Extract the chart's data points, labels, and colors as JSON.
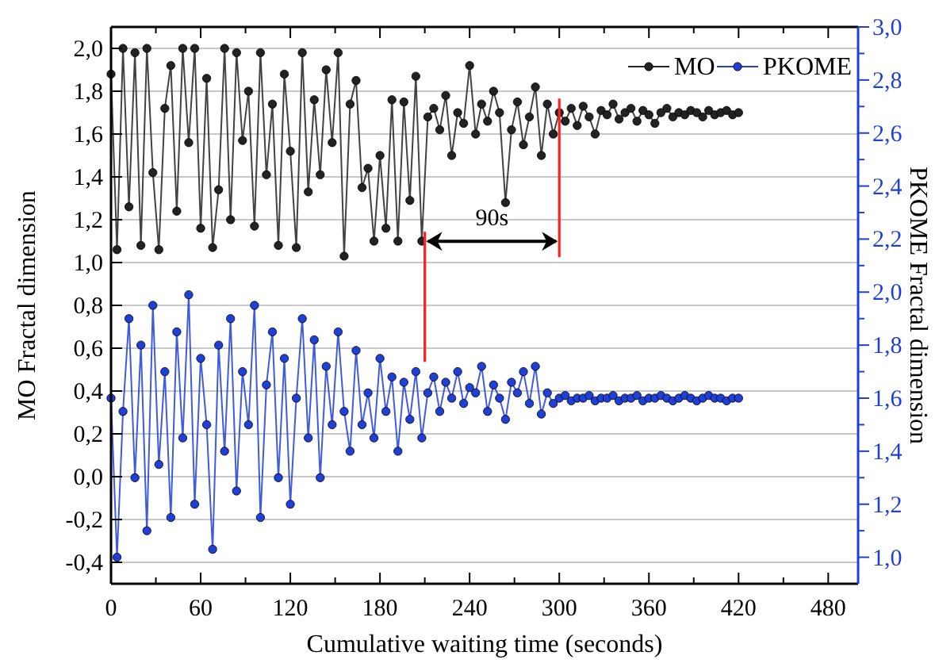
{
  "chart_data": {
    "type": "line",
    "xlabel": "Cumulative waiting time (seconds)",
    "ylabel": "MO Fractal dimension",
    "y2label": "PKOME Fractal dimension",
    "x": [
      0,
      4,
      8,
      12,
      16,
      20,
      24,
      28,
      32,
      36,
      40,
      44,
      48,
      52,
      56,
      60,
      64,
      68,
      72,
      76,
      80,
      84,
      88,
      92,
      96,
      100,
      104,
      108,
      112,
      116,
      120,
      124,
      128,
      132,
      136,
      140,
      144,
      148,
      152,
      156,
      160,
      164,
      168,
      172,
      176,
      180,
      184,
      188,
      192,
      196,
      200,
      204,
      208,
      212,
      216,
      220,
      224,
      228,
      232,
      236,
      240,
      244,
      248,
      252,
      256,
      260,
      264,
      268,
      272,
      276,
      280,
      284,
      288,
      292,
      296,
      300,
      304,
      308,
      312,
      316,
      320,
      324,
      328,
      332,
      336,
      340,
      344,
      348,
      352,
      356,
      360,
      364,
      368,
      372,
      376,
      380,
      384,
      388,
      392,
      396,
      400,
      404,
      408,
      412,
      416,
      420
    ],
    "series": [
      {
        "name": "MO",
        "color": "#222222",
        "values": [
          1.88,
          1.06,
          2.0,
          1.26,
          1.98,
          1.08,
          2.0,
          1.42,
          1.06,
          1.72,
          1.92,
          1.24,
          2.0,
          1.56,
          2.0,
          1.16,
          1.86,
          1.07,
          1.34,
          2.0,
          1.2,
          1.98,
          1.57,
          1.8,
          1.17,
          1.98,
          1.41,
          1.74,
          1.08,
          1.88,
          1.52,
          1.07,
          1.98,
          1.33,
          1.76,
          1.41,
          1.9,
          1.56,
          1.98,
          1.03,
          1.74,
          1.85,
          1.35,
          1.44,
          1.1,
          1.5,
          1.16,
          1.76,
          1.1,
          1.75,
          1.29,
          1.87,
          1.1,
          1.68,
          1.72,
          1.62,
          1.78,
          1.5,
          1.7,
          1.65,
          1.92,
          1.6,
          1.74,
          1.66,
          1.8,
          1.7,
          1.28,
          1.62,
          1.75,
          1.55,
          1.68,
          1.82,
          1.5,
          1.74,
          1.6,
          1.7,
          1.66,
          1.72,
          1.64,
          1.73,
          1.68,
          1.6,
          1.71,
          1.69,
          1.74,
          1.67,
          1.7,
          1.72,
          1.66,
          1.71,
          1.69,
          1.65,
          1.7,
          1.72,
          1.68,
          1.7,
          1.69,
          1.71,
          1.7,
          1.68,
          1.71,
          1.69,
          1.7,
          1.71,
          1.69,
          1.7
        ]
      },
      {
        "name": "PKOME",
        "color": "#1f3fd6",
        "axis": "y2",
        "values": [
          1.6,
          1.0,
          1.55,
          1.9,
          1.3,
          1.8,
          1.1,
          1.95,
          1.35,
          1.7,
          1.15,
          1.85,
          1.45,
          1.99,
          1.2,
          1.75,
          1.5,
          1.03,
          1.8,
          1.4,
          1.9,
          1.25,
          1.7,
          1.5,
          1.95,
          1.15,
          1.65,
          1.85,
          1.3,
          1.75,
          1.2,
          1.6,
          1.9,
          1.45,
          1.82,
          1.3,
          1.72,
          1.5,
          1.85,
          1.55,
          1.4,
          1.78,
          1.5,
          1.62,
          1.45,
          1.75,
          1.55,
          1.68,
          1.4,
          1.66,
          1.52,
          1.7,
          1.45,
          1.62,
          1.68,
          1.55,
          1.66,
          1.6,
          1.7,
          1.58,
          1.64,
          1.62,
          1.72,
          1.55,
          1.65,
          1.6,
          1.52,
          1.66,
          1.62,
          1.7,
          1.58,
          1.72,
          1.54,
          1.62,
          1.58,
          1.6,
          1.61,
          1.59,
          1.6,
          1.6,
          1.61,
          1.59,
          1.6,
          1.6,
          1.61,
          1.59,
          1.6,
          1.6,
          1.61,
          1.59,
          1.6,
          1.6,
          1.61,
          1.6,
          1.59,
          1.6,
          1.61,
          1.6,
          1.59,
          1.6,
          1.61,
          1.6,
          1.6,
          1.59,
          1.6,
          1.6
        ]
      }
    ],
    "xlim": [
      0,
      500
    ],
    "xticks": [
      0,
      {
        "value": 30,
        "label": null
      },
      60,
      {
        "value": 90,
        "label": null
      },
      120,
      {
        "value": 150,
        "label": null
      },
      180,
      {
        "value": 210,
        "label": null
      },
      240,
      {
        "value": 270,
        "label": null
      },
      300,
      {
        "value": 330,
        "label": null
      },
      360,
      {
        "value": 390,
        "label": null
      },
      420,
      {
        "value": 450,
        "label": null
      },
      480
    ],
    "ylim": [
      -0.5,
      2.1
    ],
    "yticks": [
      {
        "value": -0.4,
        "label": "-0,4"
      },
      {
        "value": -0.2,
        "label": "-0,2"
      },
      {
        "value": 0,
        "label": "0,0"
      },
      {
        "value": 0.2,
        "label": "0,2"
      },
      {
        "value": 0.4,
        "label": "0,4"
      },
      {
        "value": 0.6,
        "label": "0,6"
      },
      {
        "value": 0.8,
        "label": "0,8"
      },
      {
        "value": 1.0,
        "label": "1,0"
      },
      {
        "value": 1.2,
        "label": "1,2"
      },
      {
        "value": 1.4,
        "label": "1,4"
      },
      {
        "value": 1.6,
        "label": "1,6"
      },
      {
        "value": 1.8,
        "label": "1,8"
      },
      {
        "value": 2.0,
        "label": "2,0"
      }
    ],
    "y2lim": [
      0.9,
      3.0
    ],
    "y2ticks": [
      {
        "value": 1.0,
        "label": "1,0"
      },
      {
        "value": 1.1,
        "label": null
      },
      {
        "value": 1.2,
        "label": "1,2"
      },
      {
        "value": 1.3,
        "label": null
      },
      {
        "value": 1.4,
        "label": "1,4"
      },
      {
        "value": 1.5,
        "label": null
      },
      {
        "value": 1.6,
        "label": "1,6"
      },
      {
        "value": 1.7,
        "label": null
      },
      {
        "value": 1.8,
        "label": "1,8"
      },
      {
        "value": 1.9,
        "label": null
      },
      {
        "value": 2.0,
        "label": "2,0"
      },
      {
        "value": 2.1,
        "label": null
      },
      {
        "value": 2.2,
        "label": "2,2"
      },
      {
        "value": 2.3,
        "label": null
      },
      {
        "value": 2.4,
        "label": "2,4"
      },
      {
        "value": 2.5,
        "label": null
      },
      {
        "value": 2.6,
        "label": "2,6"
      },
      {
        "value": 2.7,
        "label": null
      },
      {
        "value": 2.8,
        "label": "2,8"
      },
      {
        "value": 2.9,
        "label": null
      },
      {
        "value": 3.0,
        "label": "3,0"
      }
    ],
    "ref_lines": [
      {
        "axis": "x",
        "value": 210,
        "color": "#ff2020"
      },
      {
        "axis": "x",
        "value": 300,
        "color": "#ff2020"
      }
    ],
    "annotations": [
      "90s"
    ],
    "grid": "y",
    "legend": "top right",
    "marker": "circle",
    "line_style": "solid"
  }
}
